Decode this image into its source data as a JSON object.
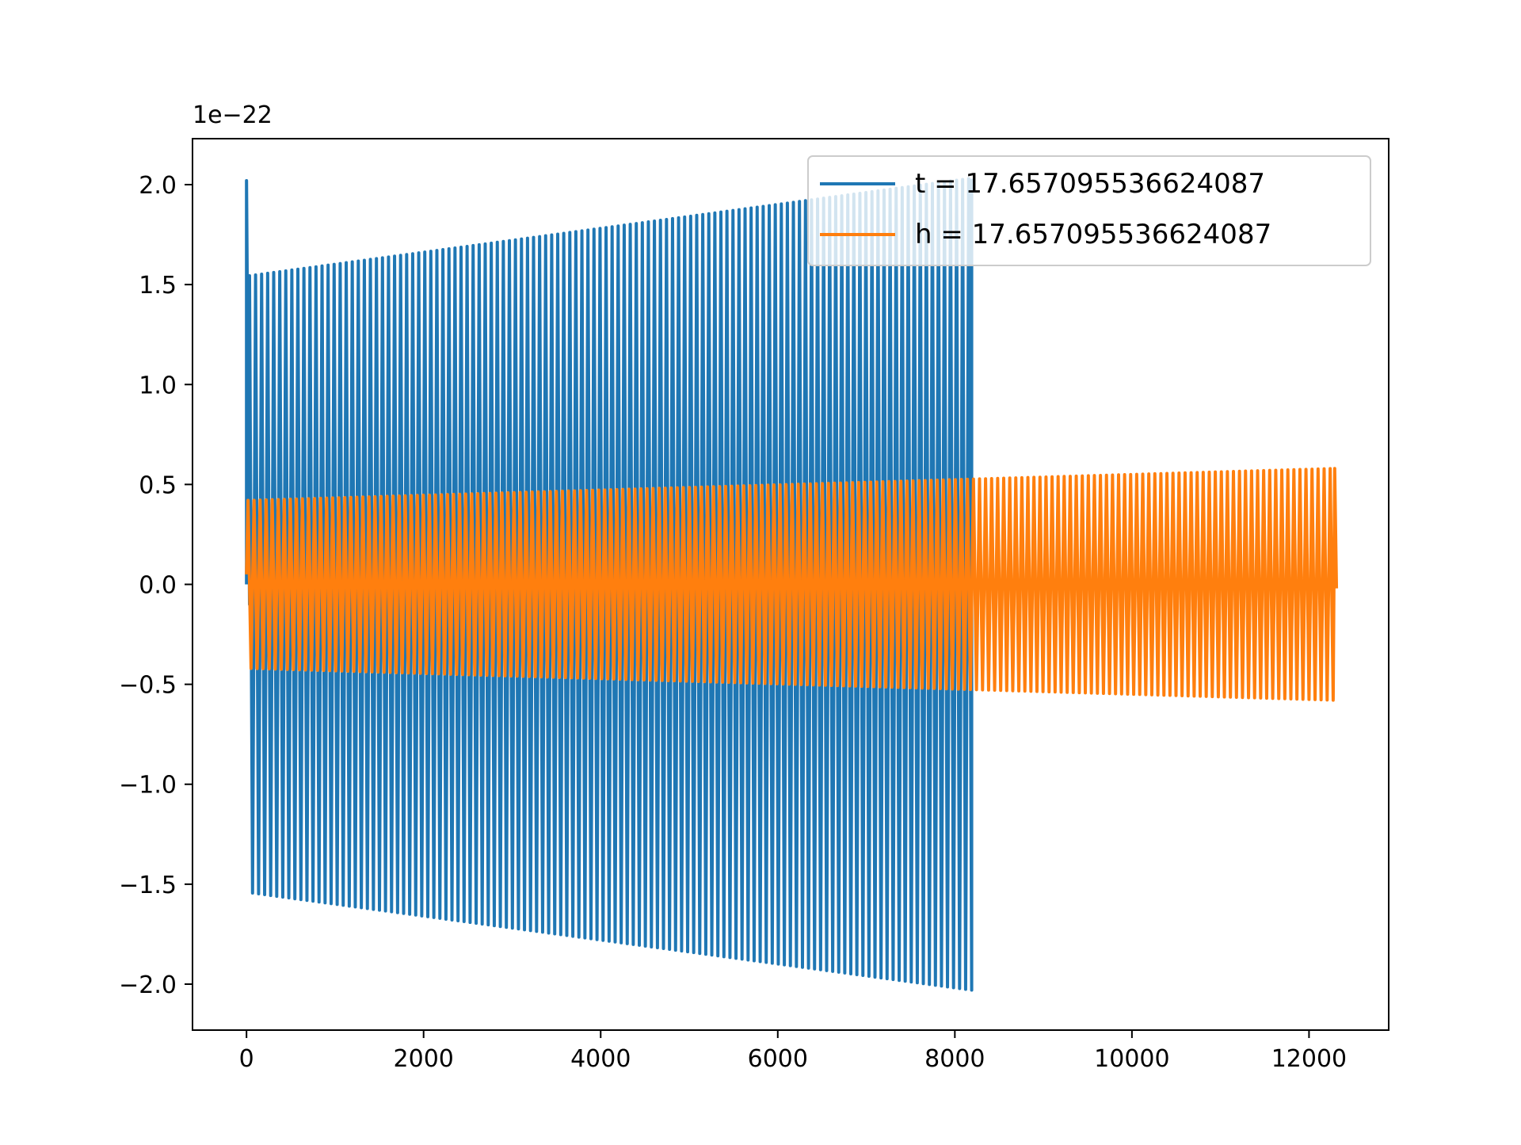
{
  "chart_data": {
    "type": "line",
    "title": "",
    "xlabel": "",
    "ylabel": "",
    "offset_text": "1e−22",
    "xlim": [
      -610,
      12900
    ],
    "ylim": [
      -2.23,
      2.23
    ],
    "x_ticks": [
      0,
      2000,
      4000,
      6000,
      8000,
      10000,
      12000
    ],
    "x_tick_labels": [
      "0",
      "2000",
      "4000",
      "6000",
      "8000",
      "10000",
      "12000"
    ],
    "y_ticks": [
      -2.0,
      -1.5,
      -1.0,
      -0.5,
      0.0,
      0.5,
      1.0,
      1.5,
      2.0
    ],
    "y_tick_labels": [
      "−2.0",
      "−1.5",
      "−1.0",
      "−0.5",
      "0.0",
      "0.5",
      "1.0",
      "1.5",
      "2.0"
    ],
    "grid": false,
    "legend_position": "upper-right",
    "series": [
      {
        "name": "t = 17.657095536624087",
        "color": "#1f77b4",
        "x_start": 0,
        "x_end": 8190,
        "initial_peak": 2.02,
        "initial_trough": -0.1,
        "amplitude_start": 1.54,
        "amplitude_end": 2.03,
        "cycles": 120
      },
      {
        "name": "h = 17.657095536624087",
        "color": "#ff7f0e",
        "x_start": 0,
        "x_end": 12290,
        "amplitude_start": 0.42,
        "amplitude_end": 0.58,
        "final_value": -0.02,
        "cycles": 180
      }
    ]
  }
}
